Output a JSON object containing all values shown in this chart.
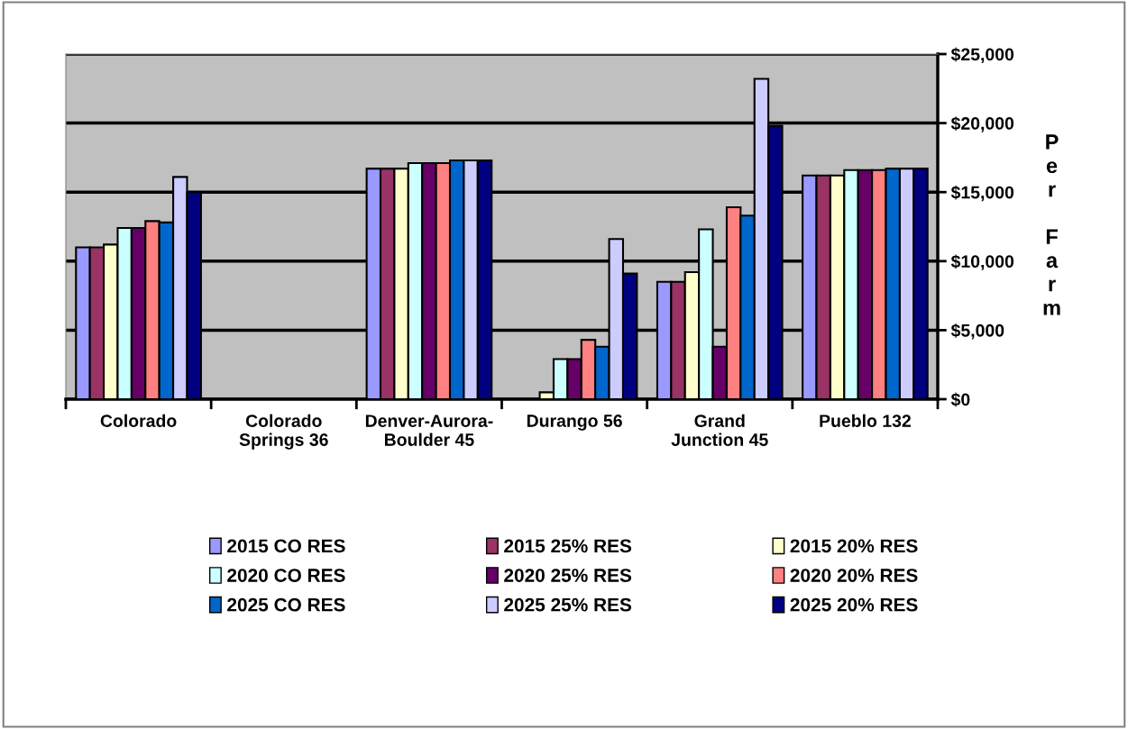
{
  "chart_data": {
    "type": "bar",
    "ylabel": "Per Farm",
    "categories": [
      "Colorado",
      "Colorado\nSprings 36",
      "Denver-Aurora-\nBoulder 45",
      "Durango 56",
      "Grand\nJunction 45",
      "Pueblo 132"
    ],
    "series": [
      {
        "name": "2015 CO RES",
        "color": "#9999ff",
        "values": [
          11000,
          null,
          16700,
          null,
          8500,
          16200
        ]
      },
      {
        "name": "2015 25% RES",
        "color": "#993366",
        "values": [
          11000,
          null,
          16700,
          null,
          8500,
          16200
        ]
      },
      {
        "name": "2015 20% RES",
        "color": "#ffffcc",
        "values": [
          11200,
          null,
          16700,
          500,
          9200,
          16200
        ]
      },
      {
        "name": "2020 CO RES",
        "color": "#ccffff",
        "values": [
          12400,
          null,
          17100,
          2900,
          12300,
          16600
        ]
      },
      {
        "name": "2020 25% RES",
        "color": "#660066",
        "values": [
          12400,
          null,
          17100,
          2900,
          3800,
          16600
        ]
      },
      {
        "name": "2020 20% RES",
        "color": "#ff8080",
        "values": [
          12900,
          null,
          17100,
          4300,
          13900,
          16600
        ]
      },
      {
        "name": "2025 CO RES",
        "color": "#0066cc",
        "values": [
          12800,
          null,
          17300,
          3800,
          13300,
          16700
        ]
      },
      {
        "name": "2025 25% RES",
        "color": "#ccccff",
        "values": [
          16100,
          null,
          17300,
          11600,
          23200,
          16700
        ]
      },
      {
        "name": "2025 20% RES",
        "color": "#000080",
        "values": [
          15000,
          null,
          17300,
          9100,
          19800,
          16700
        ]
      }
    ],
    "ylim": [
      0,
      25000
    ],
    "yticks": [
      {
        "value": 0,
        "label": "$0"
      },
      {
        "value": 5000,
        "label": "$5,000"
      },
      {
        "value": 10000,
        "label": "$10,000"
      },
      {
        "value": 15000,
        "label": "$15,000"
      },
      {
        "value": 20000,
        "label": "$20,000"
      },
      {
        "value": 25000,
        "label": "$25,000"
      }
    ],
    "grid": "y",
    "legend": "bottom"
  }
}
